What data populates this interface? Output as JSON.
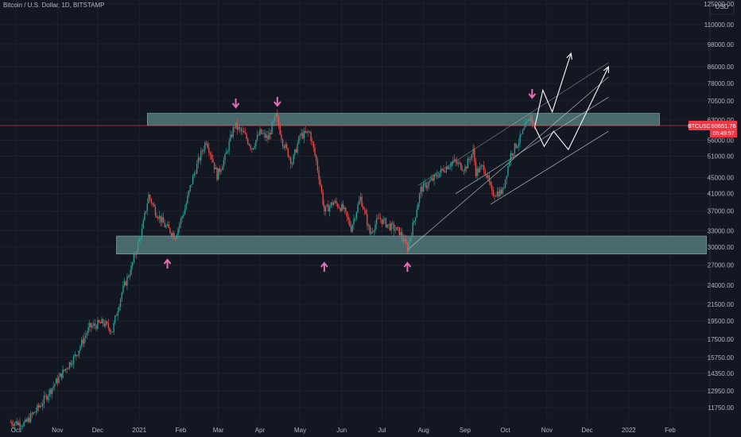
{
  "header": {
    "title": "Bitcoin / U.S. Dollar, 1D, BITSTAMP"
  },
  "price_axis": {
    "currency": "USD",
    "ticks": [
      "11750.00",
      "12950.00",
      "14350.00",
      "15750.00",
      "17500.00",
      "19500.00",
      "21500.00",
      "24000.00",
      "27000.00",
      "30000.00",
      "33000.00",
      "37000.00",
      "41000.00",
      "45000.00",
      "51000.00",
      "56000.00",
      "63000.00",
      "70500.00",
      "78000.00",
      "86000.00",
      "98000.00",
      "110000.00",
      "125000.00"
    ]
  },
  "time_axis": {
    "labels": [
      "Oct",
      "Nov",
      "Dec",
      "2021",
      "Feb",
      "Mar",
      "Apr",
      "May",
      "Jun",
      "Jul",
      "Aug",
      "Sep",
      "Oct",
      "Nov",
      "Dec",
      "2022",
      "Feb"
    ]
  },
  "current_price": {
    "symbol": "BTCUSD",
    "price": "60651.76",
    "countdown": "05:49:57",
    "color": "#f23645"
  },
  "colors": {
    "background": "#131722",
    "up": "#26a69a",
    "down": "#ef5350",
    "zone": "#5d8a8a",
    "arrow": "#e36fb5",
    "channel": "#c9cbd1",
    "projection": "#ffffff"
  },
  "chart_data": {
    "type": "candlestick",
    "title": "Bitcoin / U.S. Dollar, 1D, BITSTAMP",
    "scale": "log",
    "ylim": [
      11000,
      125000
    ],
    "x_range": [
      "2020-09-27",
      "2022-02-28"
    ],
    "close_path": [
      [
        "2020-09-27",
        10800
      ],
      [
        "2020-10-08",
        10700
      ],
      [
        "2020-10-20",
        12000
      ],
      [
        "2020-11-01",
        13800
      ],
      [
        "2020-11-15",
        16000
      ],
      [
        "2020-11-25",
        18800
      ],
      [
        "2020-12-05",
        19300
      ],
      [
        "2020-12-12",
        18400
      ],
      [
        "2020-12-19",
        23000
      ],
      [
        "2020-12-26",
        26500
      ],
      [
        "2021-01-03",
        33000
      ],
      [
        "2021-01-08",
        40500
      ],
      [
        "2021-01-13",
        37000
      ],
      [
        "2021-01-20",
        34000
      ],
      [
        "2021-01-28",
        32000
      ],
      [
        "2021-02-04",
        37500
      ],
      [
        "2021-02-10",
        45000
      ],
      [
        "2021-02-20",
        56000
      ],
      [
        "2021-02-28",
        45500
      ],
      [
        "2021-03-06",
        50500
      ],
      [
        "2021-03-13",
        61000
      ],
      [
        "2021-03-20",
        58000
      ],
      [
        "2021-03-26",
        53500
      ],
      [
        "2021-04-01",
        58500
      ],
      [
        "2021-04-07",
        56500
      ],
      [
        "2021-04-13",
        64500
      ],
      [
        "2021-04-18",
        55500
      ],
      [
        "2021-04-25",
        49000
      ],
      [
        "2021-05-01",
        57500
      ],
      [
        "2021-05-08",
        58500
      ],
      [
        "2021-05-13",
        49500
      ],
      [
        "2021-05-19",
        37000
      ],
      [
        "2021-05-26",
        39000
      ],
      [
        "2021-06-02",
        37500
      ],
      [
        "2021-06-08",
        33500
      ],
      [
        "2021-06-15",
        40000
      ],
      [
        "2021-06-22",
        32500
      ],
      [
        "2021-06-29",
        35500
      ],
      [
        "2021-07-06",
        34000
      ],
      [
        "2021-07-14",
        32800
      ],
      [
        "2021-07-20",
        29800
      ],
      [
        "2021-07-25",
        35000
      ],
      [
        "2021-07-30",
        42000
      ],
      [
        "2021-08-08",
        44500
      ],
      [
        "2021-08-15",
        47000
      ],
      [
        "2021-08-23",
        49500
      ],
      [
        "2021-09-01",
        47500
      ],
      [
        "2021-09-07",
        52500
      ],
      [
        "2021-09-09",
        46500
      ],
      [
        "2021-09-15",
        48000
      ],
      [
        "2021-09-21",
        41000
      ],
      [
        "2021-09-29",
        41500
      ],
      [
        "2021-10-05",
        51500
      ],
      [
        "2021-10-12",
        56500
      ],
      [
        "2021-10-20",
        64500
      ],
      [
        "2021-10-22",
        61000
      ],
      [
        "2021-10-23",
        60651.76
      ]
    ],
    "horizontal_zones": [
      {
        "name": "resistance",
        "from": 61000,
        "to": 65500,
        "x_start": "2021-01-07",
        "x_end": "2022-01-24"
      },
      {
        "name": "support",
        "from": 28800,
        "to": 32000,
        "x_start": "2020-12-15",
        "x_end": "2022-02-28"
      }
    ],
    "pink_arrows": [
      {
        "x": "2021-03-14",
        "dir": "down"
      },
      {
        "x": "2021-04-14",
        "dir": "down"
      },
      {
        "x": "2021-10-21",
        "dir": "down"
      },
      {
        "x": "2021-01-22",
        "dir": "up"
      },
      {
        "x": "2021-05-19",
        "dir": "up"
      },
      {
        "x": "2021-07-20",
        "dir": "up"
      }
    ],
    "channel": [
      {
        "start": [
          "2021-07-20",
          29500
        ],
        "end": [
          "2021-12-17",
          81000
        ]
      },
      {
        "start": [
          "2021-07-28",
          43000
        ],
        "end": [
          "2021-12-17",
          88000
        ]
      },
      {
        "start": [
          "2021-08-25",
          41000
        ],
        "end": [
          "2021-12-17",
          72000
        ]
      },
      {
        "start": [
          "2021-09-20",
          38500
        ],
        "end": [
          "2021-12-17",
          59000
        ]
      }
    ],
    "projections": [
      {
        "points": [
          [
            "2021-10-23",
            60500
          ],
          [
            "2021-10-29",
            75000
          ],
          [
            "2021-11-05",
            66000
          ],
          [
            "2021-11-19",
            93000
          ]
        ]
      },
      {
        "points": [
          [
            "2021-10-23",
            60500
          ],
          [
            "2021-10-30",
            54000
          ],
          [
            "2021-11-06",
            59000
          ],
          [
            "2021-11-17",
            53000
          ],
          [
            "2021-12-17",
            86000
          ]
        ]
      }
    ]
  }
}
